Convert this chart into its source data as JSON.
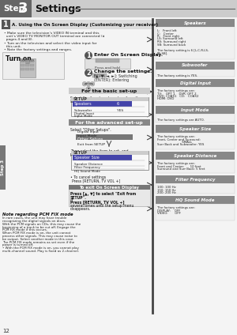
{
  "bg_color": "#f4f4f4",
  "header_bg": "#666666",
  "header_text_color": "#ffffff",
  "step_label": "Step",
  "step_num": "3",
  "settings_label": "Settings",
  "section1_title": "A. Using the On Screen Display (Customizing your receiver)",
  "bullets": [
    "Make sure the television’s VIDEO IN terminal and this unit’s VIDEO TV MONITOR OUT terminal are connected (á pages 4 and 8).",
    "Turn on the television and select the video input for this unit.",
    "Note the factory settings and ranges."
  ],
  "right_sections": [
    {
      "header": "Speakers",
      "content_lines": [
        "L:   Front left",
        "C:   Center",
        "R:   Front right",
        "LS: Surround left",
        "RS: Surround right",
        "SB: Surround back",
        "",
        "The factory setting is 6 [L-C-R-LS-",
        "RS-SB]."
      ]
    },
    {
      "header": "Subwoofer",
      "content_lines": [
        "",
        "The factory setting is YES."
      ]
    },
    {
      "header": "Digital Input",
      "content_lines": [
        "The factory settings are:",
        "TV:    OPT 1    DVR: OPT 2",
        "DVD: COAX1   CD:   COAX2",
        "HDMI: DVD"
      ]
    },
    {
      "header": "Input Mode",
      "content_lines": [
        "",
        "The factory settings are AUTO."
      ]
    },
    {
      "header": "Speaker Size",
      "content_lines": [
        "The factory settings are:",
        "Front, Center and Surround:",
        "                         SMALL",
        "Surr Back and Subwoofer: YES"
      ]
    },
    {
      "header": "Speaker Distance",
      "content_lines": [
        "The factory settings are:",
        "Front and Center:      10 feet",
        "Surround and Surr Back: 5 feet"
      ]
    },
    {
      "header": "Filter Frequency",
      "content_lines": [
        "100: 100 Hz",
        "150: 150 Hz",
        "200: 200 Hz"
      ]
    },
    {
      "header": "HQ Sound Mode",
      "content_lines": [
        "The factory settings are:",
        "DISPLAY:    OFF",
        "VIDEO:       OFF"
      ]
    }
  ],
  "page_num": "12"
}
